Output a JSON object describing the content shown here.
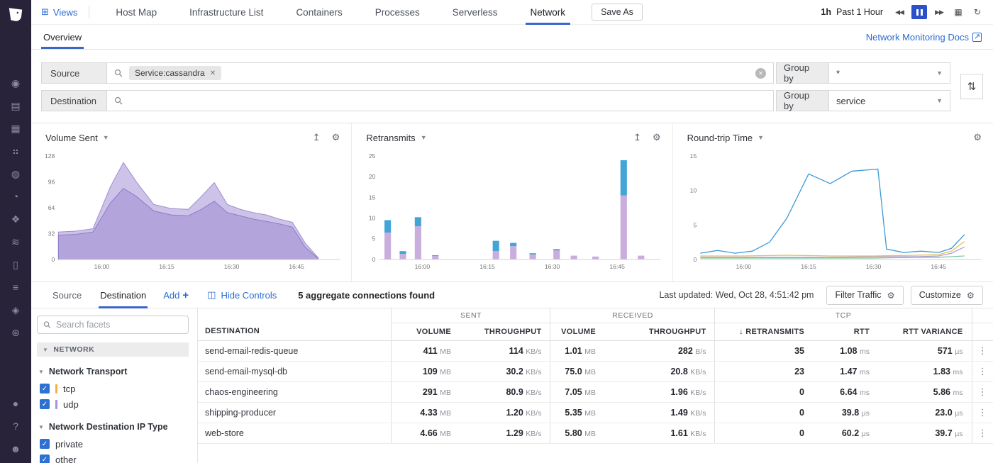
{
  "colors": {
    "accent_blue": "#2c6bcf",
    "tab_underline": "#3a66c9",
    "pause_button_bg": "#2b50c9",
    "checkbox_blue": "#2d72d2",
    "tcp_facet_color": "#f2b33d",
    "udp_facet_color": "#a98fd6"
  },
  "sidebar": {
    "logo_name": "datadog-logo",
    "icons": [
      {
        "name": "watchdog-icon",
        "glyph": "◉"
      },
      {
        "name": "events-icon",
        "glyph": "▤"
      },
      {
        "name": "dashboards-icon",
        "glyph": "▦"
      },
      {
        "name": "infrastructure-icon",
        "glyph": "⠶"
      },
      {
        "name": "monitors-icon",
        "glyph": "◍"
      },
      {
        "name": "apm-icon",
        "glyph": "◔"
      },
      {
        "name": "integrations-icon",
        "glyph": "❖"
      },
      {
        "name": "traces-icon",
        "glyph": "≋"
      },
      {
        "name": "notebooks-icon",
        "glyph": "▯"
      },
      {
        "name": "logs-icon",
        "glyph": "≡"
      },
      {
        "name": "security-icon",
        "glyph": "◈"
      },
      {
        "name": "synthetics-icon",
        "glyph": "⊛"
      }
    ],
    "bottom_icons": [
      {
        "name": "chat-icon",
        "glyph": "●"
      },
      {
        "name": "help-icon",
        "glyph": "?"
      },
      {
        "name": "team-icon",
        "glyph": "☻"
      }
    ]
  },
  "topnav": {
    "views_label": "Views",
    "tabs": [
      {
        "label": "Host Map",
        "active": false
      },
      {
        "label": "Infrastructure List",
        "active": false
      },
      {
        "label": "Containers",
        "active": false
      },
      {
        "label": "Processes",
        "active": false
      },
      {
        "label": "Serverless",
        "active": false
      },
      {
        "label": "Network",
        "active": true
      }
    ],
    "save_as_label": "Save As",
    "time_short": "1h",
    "time_label": "Past 1 Hour"
  },
  "subnav": {
    "tab": "Overview",
    "docs_link": "Network Monitoring Docs"
  },
  "filters": {
    "source": {
      "scope_label": "Source",
      "tag": "Service:cassandra",
      "group_by_label": "Group by",
      "group_value": "*"
    },
    "destination": {
      "scope_label": "Destination",
      "group_by_label": "Group by",
      "group_value": "service"
    }
  },
  "chart_data": [
    {
      "type": "area",
      "title": "Volume Sent",
      "ylim": [
        0,
        128
      ],
      "yticks": [
        0,
        32,
        64,
        96,
        128
      ],
      "x_domain": [
        0,
        65
      ],
      "xticks": [
        {
          "x": 10,
          "label": "16:00"
        },
        {
          "x": 25,
          "label": "16:15"
        },
        {
          "x": 40,
          "label": "16:30"
        },
        {
          "x": 55,
          "label": "16:45"
        }
      ],
      "series": [
        {
          "name": "volume-total",
          "color": "#cdc2e8",
          "stroke": "#9d8fd0",
          "x": [
            0,
            4,
            8,
            12,
            15,
            18,
            22,
            26,
            30,
            33,
            36,
            39,
            42,
            45,
            48,
            51,
            54,
            57,
            60
          ],
          "values": [
            34,
            35,
            38,
            90,
            120,
            96,
            68,
            63,
            62,
            78,
            95,
            68,
            62,
            58,
            55,
            50,
            46,
            20,
            2
          ]
        },
        {
          "name": "volume-inner",
          "color": "#b4a4dc",
          "stroke": "#8d7cc7",
          "x": [
            0,
            4,
            8,
            12,
            15,
            18,
            22,
            26,
            30,
            33,
            36,
            39,
            42,
            45,
            48,
            51,
            54,
            57,
            60
          ],
          "values": [
            30,
            31,
            34,
            70,
            88,
            78,
            60,
            55,
            54,
            62,
            72,
            58,
            54,
            50,
            47,
            44,
            40,
            15,
            1
          ]
        }
      ]
    },
    {
      "type": "stacked_bar",
      "title": "Retransmits",
      "ylim": [
        0,
        25
      ],
      "yticks": [
        0,
        5,
        10,
        15,
        20,
        25
      ],
      "x_domain": [
        0,
        65
      ],
      "xticks": [
        {
          "x": 10,
          "label": "16:00"
        },
        {
          "x": 25,
          "label": "16:15"
        },
        {
          "x": 40,
          "label": "16:30"
        },
        {
          "x": 55,
          "label": "16:45"
        }
      ],
      "stack_colors": [
        "#c9addd",
        "#42a5d6"
      ],
      "stack_names": [
        "retransmits-purple",
        "retransmits-blue"
      ],
      "bars": [
        {
          "x": 2,
          "values": [
            6.5,
            3
          ]
        },
        {
          "x": 5.5,
          "values": [
            1.3,
            0.7
          ]
        },
        {
          "x": 9,
          "values": [
            8,
            2.2
          ]
        },
        {
          "x": 13,
          "values": [
            0.8,
            0.2
          ]
        },
        {
          "x": 27,
          "values": [
            2,
            2.5
          ]
        },
        {
          "x": 31,
          "values": [
            3.2,
            0.8
          ]
        },
        {
          "x": 35.5,
          "values": [
            1.2,
            0.3
          ]
        },
        {
          "x": 41,
          "values": [
            2.2,
            0.3
          ]
        },
        {
          "x": 45,
          "values": [
            0.9,
            0
          ]
        },
        {
          "x": 50,
          "values": [
            0.7,
            0
          ]
        },
        {
          "x": 56.5,
          "values": [
            15.5,
            8.5
          ]
        },
        {
          "x": 60.5,
          "values": [
            0.9,
            0
          ]
        }
      ]
    },
    {
      "type": "line",
      "title": "Round-trip Time",
      "ylim": [
        0,
        15
      ],
      "yticks": [
        0,
        5,
        10,
        15
      ],
      "x_domain": [
        0,
        65
      ],
      "xticks": [
        {
          "x": 10,
          "label": "16:00"
        },
        {
          "x": 25,
          "label": "16:15"
        },
        {
          "x": 40,
          "label": "16:30"
        },
        {
          "x": 55,
          "label": "16:45"
        }
      ],
      "series": [
        {
          "name": "rtt-primary",
          "color": "#3f9ad6",
          "x": [
            0,
            4,
            8,
            12,
            16,
            20,
            25,
            30,
            35,
            41,
            43,
            47,
            51,
            55,
            58,
            61
          ],
          "values": [
            0.9,
            1.3,
            0.9,
            1.2,
            2.5,
            6,
            12.4,
            11,
            12.8,
            13.1,
            1.5,
            1.0,
            1.2,
            1.0,
            1.6,
            3.6
          ]
        },
        {
          "name": "rtt-secondary",
          "color": "#e4c05a",
          "x": [
            0,
            10,
            20,
            30,
            40,
            50,
            55,
            58,
            61
          ],
          "values": [
            0.5,
            0.5,
            0.6,
            0.5,
            0.5,
            0.6,
            0.7,
            1.2,
            2.6
          ]
        },
        {
          "name": "rtt-tertiary",
          "color": "#b39ddb",
          "x": [
            0,
            10,
            20,
            30,
            40,
            50,
            55,
            58,
            61
          ],
          "values": [
            0.3,
            0.3,
            0.3,
            0.3,
            0.4,
            0.4,
            0.5,
            0.9,
            1.8
          ]
        },
        {
          "name": "rtt-quaternary",
          "color": "#7fc6a4",
          "x": [
            0,
            10,
            20,
            30,
            40,
            50,
            55,
            58,
            61
          ],
          "values": [
            0.2,
            0.2,
            0.2,
            0.2,
            0.2,
            0.3,
            0.3,
            0.4,
            0.5
          ]
        }
      ]
    }
  ],
  "controls": {
    "tabs": [
      {
        "label": "Source",
        "active": false
      },
      {
        "label": "Destination",
        "active": true
      }
    ],
    "add_label": "Add",
    "hide_controls_label": "Hide Controls",
    "summary": "5 aggregate connections found",
    "last_updated": "Last updated: Wed, Oct 28, 4:51:42 pm",
    "filter_traffic_label": "Filter Traffic",
    "customize_label": "Customize"
  },
  "facets": {
    "search_placeholder": "Search facets",
    "group_label": "NETWORK",
    "sections": [
      {
        "title": "Network Transport",
        "items": [
          {
            "label": "tcp",
            "checked": true,
            "bar_color": "#f2b33d"
          },
          {
            "label": "udp",
            "checked": true,
            "bar_color": "#a98fd6"
          }
        ]
      },
      {
        "title": "Network Destination IP Type",
        "items": [
          {
            "label": "private",
            "checked": true
          },
          {
            "label": "other",
            "checked": true
          }
        ]
      }
    ]
  },
  "table": {
    "group_headers": [
      {
        "label": "SENT",
        "span": 2
      },
      {
        "label": "RECEIVED",
        "span": 2
      },
      {
        "label": "TCP",
        "span": 3
      }
    ],
    "columns": [
      {
        "label": "DESTINATION"
      },
      {
        "label": "VOLUME"
      },
      {
        "label": "THROUGHPUT"
      },
      {
        "label": "VOLUME"
      },
      {
        "label": "THROUGHPUT"
      },
      {
        "label": "RETRANSMITS",
        "sorted": "desc"
      },
      {
        "label": "RTT"
      },
      {
        "label": "RTT VARIANCE"
      }
    ],
    "rows": [
      {
        "destination": "send-email-redis-queue",
        "cells": [
          {
            "v": "411",
            "u": "MB"
          },
          {
            "v": "114",
            "u": "KB/s"
          },
          {
            "v": "1.01",
            "u": "MB"
          },
          {
            "v": "282",
            "u": "B/s"
          },
          {
            "v": "35"
          },
          {
            "v": "1.08",
            "u": "ms"
          },
          {
            "v": "571",
            "u": "µs"
          }
        ]
      },
      {
        "destination": "send-email-mysql-db",
        "cells": [
          {
            "v": "109",
            "u": "MB"
          },
          {
            "v": "30.2",
            "u": "KB/s"
          },
          {
            "v": "75.0",
            "u": "MB"
          },
          {
            "v": "20.8",
            "u": "KB/s"
          },
          {
            "v": "23"
          },
          {
            "v": "1.47",
            "u": "ms"
          },
          {
            "v": "1.83",
            "u": "ms"
          }
        ]
      },
      {
        "destination": "chaos-engineering",
        "cells": [
          {
            "v": "291",
            "u": "MB"
          },
          {
            "v": "80.9",
            "u": "KB/s"
          },
          {
            "v": "7.05",
            "u": "MB"
          },
          {
            "v": "1.96",
            "u": "KB/s"
          },
          {
            "v": "0"
          },
          {
            "v": "6.64",
            "u": "ms"
          },
          {
            "v": "5.86",
            "u": "ms"
          }
        ]
      },
      {
        "destination": "shipping-producer",
        "cells": [
          {
            "v": "4.33",
            "u": "MB"
          },
          {
            "v": "1.20",
            "u": "KB/s"
          },
          {
            "v": "5.35",
            "u": "MB"
          },
          {
            "v": "1.49",
            "u": "KB/s"
          },
          {
            "v": "0"
          },
          {
            "v": "39.8",
            "u": "µs"
          },
          {
            "v": "23.0",
            "u": "µs"
          }
        ]
      },
      {
        "destination": "web-store",
        "cells": [
          {
            "v": "4.66",
            "u": "MB"
          },
          {
            "v": "1.29",
            "u": "KB/s"
          },
          {
            "v": "5.80",
            "u": "MB"
          },
          {
            "v": "1.61",
            "u": "KB/s"
          },
          {
            "v": "0"
          },
          {
            "v": "60.2",
            "u": "µs"
          },
          {
            "v": "39.7",
            "u": "µs"
          }
        ]
      }
    ]
  }
}
